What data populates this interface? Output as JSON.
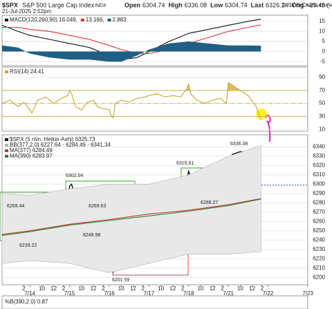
{
  "header": {
    "symbol": "$SPX",
    "name": "S&P 500 Large Cap Index",
    "exchange": "INDX",
    "datetime": "21-Jul-2025 2:52pm",
    "quote": [
      {
        "label": "Open",
        "value": 6304.74
      },
      {
        "label": "High",
        "value": 6336.08
      },
      {
        "label": "Low",
        "value": 6304.74
      },
      {
        "label": "Last",
        "value": 6326.24
      },
      {
        "label": "Chg",
        "value": "+29.45 (+0.47%)"
      }
    ],
    "source": "© StockCharts.com"
  },
  "chart_data": [
    {
      "type": "line",
      "xlim": [
        -0.7,
        7
      ],
      "ylim": [
        -7,
        18
      ],
      "yticks": [
        15,
        10,
        5,
        0,
        -5
      ],
      "grid": true,
      "series": [
        {
          "name": "MACD(120,260,90) 16.049,",
          "color": "#111111",
          "kind": "line",
          "x": [
            -0.7,
            -0.3,
            0,
            0.5,
            1,
            1.5,
            2,
            2.3,
            2.7,
            3,
            3.5,
            4,
            4.5,
            5,
            5.5,
            5.82
          ],
          "values": [
            13,
            10,
            8,
            6,
            4,
            2,
            -2,
            -4,
            -3,
            0,
            5,
            9,
            11,
            13,
            15,
            16.049
          ]
        },
        {
          "name": "13.166,",
          "color": "#e03030",
          "kind": "line",
          "x": [
            -0.7,
            -0.3,
            0,
            0.5,
            1,
            1.5,
            2,
            2.3,
            2.7,
            3,
            3.5,
            4,
            4.5,
            5,
            5.5,
            5.82
          ],
          "values": [
            12,
            12,
            11,
            10,
            8,
            6,
            3,
            1,
            -1,
            -1,
            1,
            4,
            7,
            10,
            12,
            13.166
          ]
        },
        {
          "name": "2.883",
          "color": "#1f5f85",
          "kind": "area",
          "x": [
            -0.7,
            -0.3,
            0,
            0.5,
            1,
            1.5,
            2,
            2.3,
            2.7,
            3,
            3.5,
            4,
            4.5,
            5,
            5.5,
            5.82
          ],
          "values": [
            3,
            2,
            -1,
            -3,
            -4,
            -4,
            -5,
            -5,
            -2,
            1,
            4,
            5,
            4,
            3,
            3,
            2.883
          ]
        }
      ]
    },
    {
      "type": "line",
      "xlim": [
        -0.7,
        7
      ],
      "ylim": [
        7,
        106
      ],
      "yticks": [
        90,
        70,
        50,
        30,
        10
      ],
      "grid": true,
      "hlines": [
        70,
        50,
        30
      ],
      "overbought": 70,
      "series": [
        {
          "name": "RSI(14) 24.41",
          "color": "#c9a227",
          "kind": "line",
          "x": [
            -0.7,
            -0.5,
            -0.3,
            -0.15,
            0,
            0.05,
            0.2,
            0.4,
            0.6,
            0.8,
            0.95,
            1.0,
            1.05,
            1.15,
            1.3,
            1.45,
            1.6,
            1.7,
            1.85,
            2.0,
            2.05,
            2.1,
            2.15,
            2.3,
            2.5,
            2.7,
            2.9,
            3.0,
            3.2,
            3.4,
            3.6,
            3.8,
            3.95,
            4.0,
            4.05,
            4.2,
            4.4,
            4.6,
            4.8,
            4.95,
            5.0,
            5.1,
            5.3,
            5.5,
            5.7,
            5.82
          ],
          "values": [
            50,
            55,
            45,
            52,
            40,
            35,
            55,
            60,
            50,
            58,
            62,
            70,
            65,
            45,
            40,
            52,
            55,
            45,
            42,
            40,
            30,
            28,
            50,
            55,
            52,
            58,
            60,
            62,
            65,
            60,
            62,
            60,
            72,
            80,
            65,
            55,
            50,
            55,
            58,
            50,
            82,
            78,
            70,
            62,
            45,
            24.41
          ]
        }
      ]
    },
    {
      "type": "line",
      "xlim": [
        -0.7,
        7
      ],
      "ylim": [
        6192,
        6353
      ],
      "yticks": [
        6340,
        6330,
        6320,
        6310,
        6300,
        6290,
        6280,
        6270,
        6260,
        6250,
        6240,
        6230,
        6220,
        6210,
        6200
      ],
      "grid": true,
      "xticks": [
        {
          "value": -0.15,
          "label": "2"
        },
        {
          "value": 0,
          "label": "7/14"
        },
        {
          "value": 0.3,
          "label": "10"
        },
        {
          "value": 0.6,
          "label": "12"
        },
        {
          "value": 0.85,
          "label": "2"
        },
        {
          "value": 1,
          "label": "7/15"
        },
        {
          "value": 1.3,
          "label": "10"
        },
        {
          "value": 1.6,
          "label": "12"
        },
        {
          "value": 1.85,
          "label": "2"
        },
        {
          "value": 2,
          "label": "7/16"
        },
        {
          "value": 2.3,
          "label": "10"
        },
        {
          "value": 2.6,
          "label": "12"
        },
        {
          "value": 2.85,
          "label": "2"
        },
        {
          "value": 3,
          "label": "7/17"
        },
        {
          "value": 3.3,
          "label": "10"
        },
        {
          "value": 3.6,
          "label": "12"
        },
        {
          "value": 3.85,
          "label": "2"
        },
        {
          "value": 4,
          "label": "7/18"
        },
        {
          "value": 4.3,
          "label": "10"
        },
        {
          "value": 4.6,
          "label": "12"
        },
        {
          "value": 4.85,
          "label": "2"
        },
        {
          "value": 5,
          "label": "7/21"
        },
        {
          "value": 5.3,
          "label": "10"
        },
        {
          "value": 5.6,
          "label": "12"
        },
        {
          "value": 5.85,
          "label": "2"
        },
        {
          "value": 6,
          "label": "7/22"
        },
        {
          "value": 7,
          "label": "7/23"
        }
      ],
      "annotations": [
        "6302.04",
        "6269.44",
        "6239.22",
        "6269.63",
        "6249.98",
        "6201.59",
        "6315.61",
        "6336.08",
        "6288.27"
      ],
      "series": [
        {
          "name": "$SPX (5 min, Heikin-Ashi) 6325.73",
          "color": "#111111",
          "kind": "price",
          "x": [
            -0.7,
            -0.5,
            -0.3,
            -0.15,
            0,
            0.05,
            0.2,
            0.4,
            0.6,
            0.8,
            0.95,
            1.0,
            1.05,
            1.15,
            1.3,
            1.45,
            1.6,
            1.7,
            1.85,
            2.0,
            2.05,
            2.1,
            2.15,
            2.3,
            2.5,
            2.7,
            2.9,
            3.0,
            3.2,
            3.4,
            3.6,
            3.8,
            3.95,
            4.0,
            4.05,
            4.2,
            4.4,
            4.6,
            4.8,
            4.95,
            5.0,
            5.1,
            5.3,
            5.5,
            5.7,
            5.82
          ],
          "values": [
            6255,
            6262,
            6258,
            6262,
            6250,
            6240,
            6252,
            6262,
            6265,
            6268,
            6278,
            6298,
            6300,
            6285,
            6270,
            6262,
            6272,
            6260,
            6256,
            6250,
            6230,
            6205,
            6232,
            6245,
            6252,
            6256,
            6265,
            6272,
            6280,
            6285,
            6288,
            6295,
            6305,
            6314,
            6308,
            6300,
            6295,
            6298,
            6298,
            6292,
            6325,
            6332,
            6335,
            6334,
            6331,
            6325.73
          ]
        },
        {
          "name": "BB(377,2.0) 6227.64 - 6284.49 - 6341.34",
          "color": "#b0b0b0",
          "kind": "band",
          "x": [
            -0.7,
            0,
            1,
            2,
            3,
            4,
            5,
            5.82
          ],
          "values": [
            6290,
            6288,
            6295,
            6300,
            6300,
            6310,
            6330,
            6341.34
          ],
          "lower": [
            6215,
            6218,
            6215,
            6205,
            6215,
            6225,
            6225,
            6227.64
          ]
        },
        {
          "name": "MA(377) 6284.49",
          "color": "#c0392b",
          "kind": "line",
          "x": [
            -0.7,
            0,
            1,
            2,
            3,
            4,
            5,
            5.82
          ],
          "values": [
            6246,
            6250,
            6257,
            6262,
            6268,
            6272,
            6278,
            6284.49
          ]
        },
        {
          "name": "MA(390) 6283.97",
          "color": "#2e7d32",
          "kind": "line",
          "x": [
            -0.7,
            0,
            1,
            2,
            3,
            4,
            5,
            5.82
          ],
          "values": [
            6245,
            6249,
            6256,
            6261,
            6266,
            6271,
            6277,
            6283.97
          ]
        }
      ]
    },
    {
      "type": "line",
      "title": "%B(390,2.0) 0.87",
      "series": []
    }
  ]
}
